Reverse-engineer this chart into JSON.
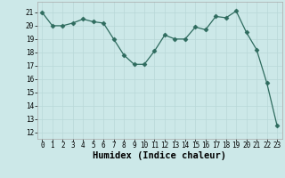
{
  "x": [
    0,
    1,
    2,
    3,
    4,
    5,
    6,
    7,
    8,
    9,
    10,
    11,
    12,
    13,
    14,
    15,
    16,
    17,
    18,
    19,
    20,
    21,
    22,
    23
  ],
  "y": [
    21,
    20,
    20,
    20.2,
    20.5,
    20.3,
    20.2,
    19.0,
    17.8,
    17.1,
    17.1,
    18.1,
    19.3,
    19.0,
    19.0,
    19.9,
    19.7,
    20.7,
    20.6,
    21.1,
    19.5,
    18.2,
    15.7,
    12.5
  ],
  "xlabel": "Humidex (Indice chaleur)",
  "ylim": [
    11.5,
    21.8
  ],
  "xlim": [
    -0.5,
    23.5
  ],
  "yticks": [
    12,
    13,
    14,
    15,
    16,
    17,
    18,
    19,
    20,
    21
  ],
  "xticks": [
    0,
    1,
    2,
    3,
    4,
    5,
    6,
    7,
    8,
    9,
    10,
    11,
    12,
    13,
    14,
    15,
    16,
    17,
    18,
    19,
    20,
    21,
    22,
    23
  ],
  "line_color": "#2e6b5e",
  "marker": "D",
  "marker_size": 2.5,
  "bg_color": "#cce8e8",
  "grid_color": "#b8d8d8",
  "tick_label_fontsize": 5.5,
  "xlabel_fontsize": 7.5
}
